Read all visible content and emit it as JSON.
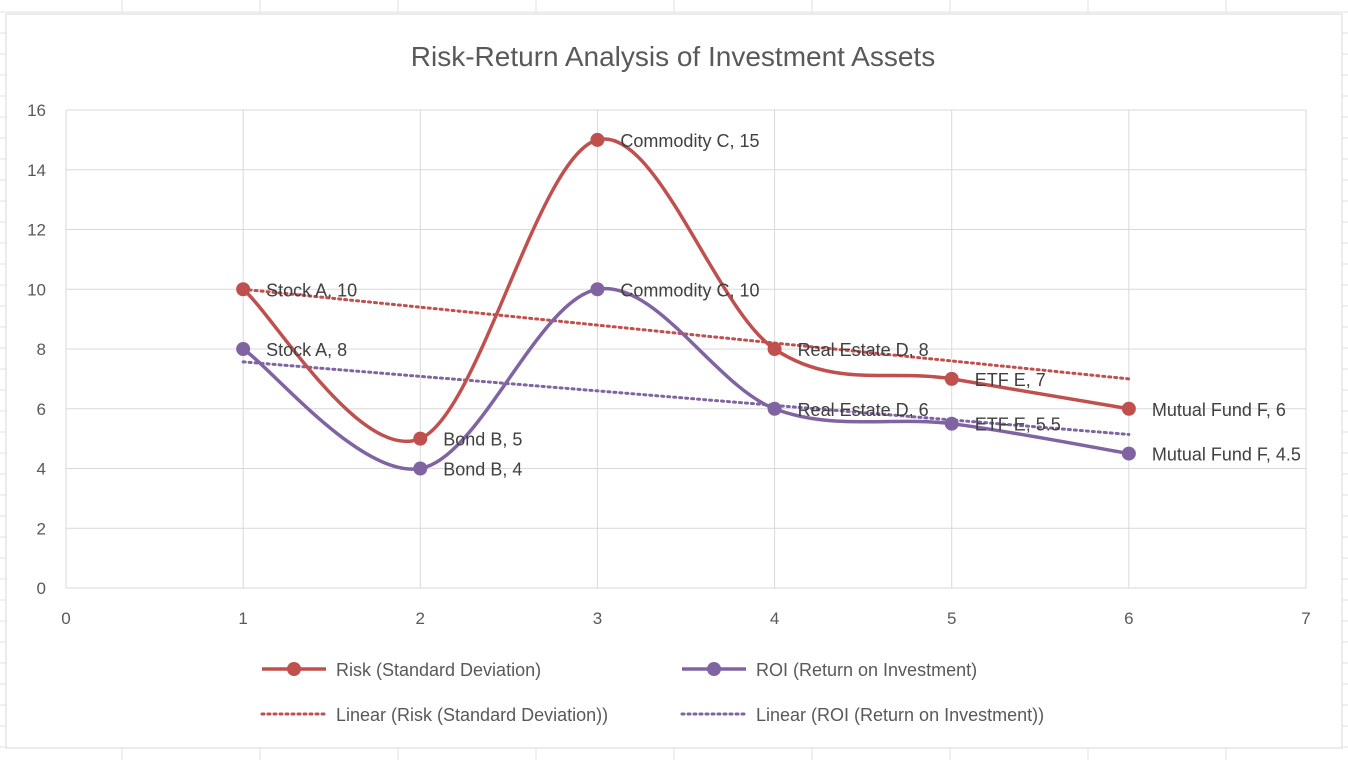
{
  "chart_data": {
    "type": "scatter",
    "title": "Risk-Return Analysis of Investment Assets",
    "xlabel": "",
    "ylabel": "",
    "xlim": [
      0,
      7
    ],
    "ylim": [
      0,
      16
    ],
    "x_ticks": [
      "0",
      "1",
      "2",
      "3",
      "4",
      "5",
      "6",
      "7"
    ],
    "y_ticks": [
      "0",
      "2",
      "4",
      "6",
      "8",
      "10",
      "12",
      "14",
      "16"
    ],
    "grid": true,
    "legend_position": "bottom",
    "x": [
      1,
      2,
      3,
      4,
      5,
      6
    ],
    "series": [
      {
        "name": "Risk (Standard Deviation)",
        "color": "#C0504D",
        "smooth": true,
        "values": [
          10,
          5,
          15,
          8,
          7,
          6
        ],
        "labels": [
          "Stock A, 10",
          "Bond B, 5",
          "Commodity C, 15",
          "Real Estate D, 8",
          "ETF E, 7",
          "Mutual Fund F, 6"
        ]
      },
      {
        "name": "ROI (Return on Investment)",
        "color": "#8064A2",
        "smooth": true,
        "values": [
          8,
          4,
          10,
          6,
          5.5,
          4.5
        ],
        "labels": [
          "Stock A, 8",
          "Bond B, 4",
          "Commodity C, 10",
          "Real Estate D, 6",
          "ETF E, 5.5",
          "Mutual Fund F, 4.5"
        ]
      }
    ],
    "trendlines": [
      {
        "name": "Linear (Risk (Standard Deviation))",
        "color": "#C0504D",
        "type": "linear",
        "x_range": [
          1,
          6
        ],
        "y_range": [
          10,
          7
        ]
      },
      {
        "name": "Linear (ROI (Return on Investment))",
        "color": "#8064A2",
        "type": "linear",
        "x_range": [
          1,
          6
        ],
        "y_range": [
          7.57,
          5.14
        ]
      }
    ]
  }
}
